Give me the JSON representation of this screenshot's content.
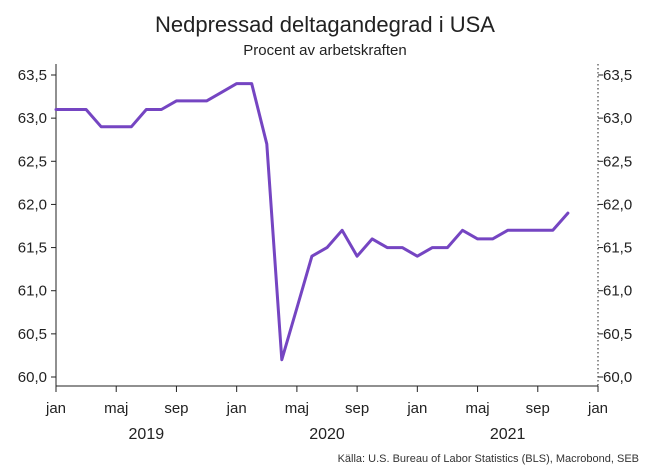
{
  "chart_data": {
    "type": "line",
    "title": "Nedpressad deltagandegrad i USA",
    "subtitle": "Procent av arbetskraften",
    "source": "Källa: U.S. Bureau of Labor Statistics (BLS), Macrobond, SEB",
    "series_color": "#7545c2",
    "ylim": [
      60.0,
      63.5
    ],
    "y_ticks": [
      "60,0",
      "60,5",
      "61,0",
      "61,5",
      "62,0",
      "62,5",
      "63,0",
      "63,5"
    ],
    "y_tick_values": [
      60.0,
      60.5,
      61.0,
      61.5,
      62.0,
      62.5,
      63.0,
      63.5
    ],
    "x_tick_labels": [
      "jan",
      "maj",
      "sep",
      "jan",
      "maj",
      "sep",
      "jan",
      "maj",
      "sep",
      "jan"
    ],
    "x_tick_dates": [
      "2019-01",
      "2019-05",
      "2019-09",
      "2020-01",
      "2020-05",
      "2020-09",
      "2021-01",
      "2021-05",
      "2021-09",
      "2022-01"
    ],
    "year_labels": [
      "2019",
      "2020",
      "2021"
    ],
    "series": [
      {
        "x": [
          "2019-01",
          "2019-02",
          "2019-03",
          "2019-04",
          "2019-05",
          "2019-06",
          "2019-07",
          "2019-08",
          "2019-09",
          "2019-10",
          "2019-11",
          "2019-12",
          "2020-01",
          "2020-02",
          "2020-03",
          "2020-04",
          "2020-05",
          "2020-06",
          "2020-07",
          "2020-08",
          "2020-09",
          "2020-10",
          "2020-11",
          "2020-12",
          "2021-01",
          "2021-02",
          "2021-03",
          "2021-04",
          "2021-05",
          "2021-06",
          "2021-07",
          "2021-08",
          "2021-09",
          "2021-10",
          "2021-11"
        ],
        "values": [
          63.1,
          63.1,
          63.1,
          62.9,
          62.9,
          62.9,
          63.1,
          63.1,
          63.2,
          63.2,
          63.2,
          63.3,
          63.4,
          63.4,
          62.7,
          60.2,
          60.8,
          61.4,
          61.5,
          61.7,
          61.4,
          61.6,
          61.5,
          61.5,
          61.4,
          61.5,
          61.5,
          61.7,
          61.6,
          61.6,
          61.7,
          61.7,
          61.7,
          61.7,
          61.9
        ]
      }
    ]
  }
}
